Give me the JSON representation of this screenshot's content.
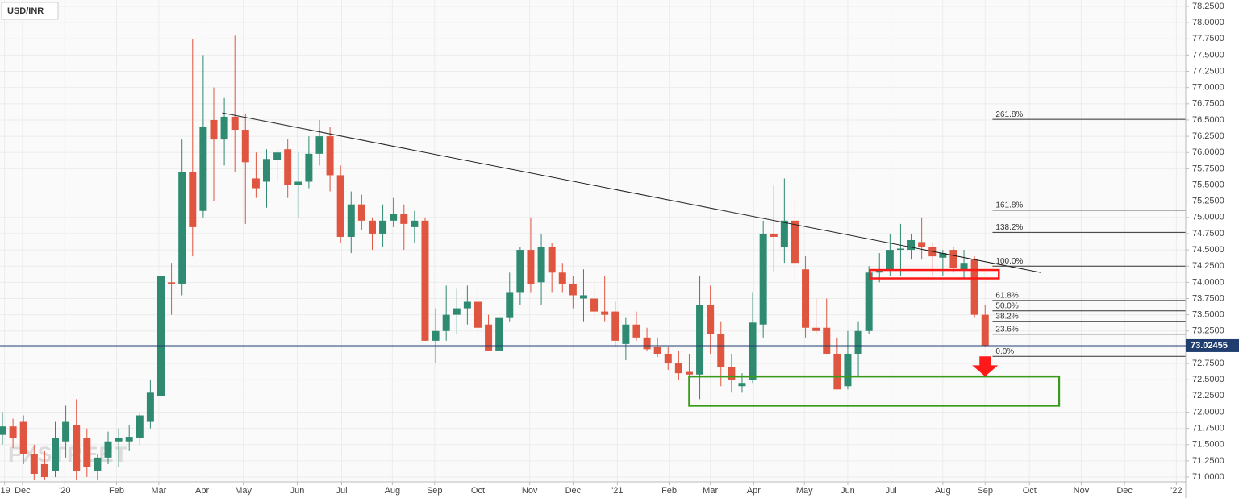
{
  "chart_data": {
    "type": "candlestick",
    "title": "USD/INR",
    "watermark": "FXSTREET",
    "up_color": "#2f8a72",
    "down_color": "#e0553f",
    "grid": true,
    "ylim": [
      70.926,
      78.349
    ],
    "yticks": [
      {
        "value": 71.0,
        "label": "71.0000"
      },
      {
        "value": 71.25,
        "label": "71.2500"
      },
      {
        "value": 71.5,
        "label": "71.5000"
      },
      {
        "value": 71.75,
        "label": "71.7500"
      },
      {
        "value": 72.0,
        "label": "72.0000"
      },
      {
        "value": 72.25,
        "label": "72.2500"
      },
      {
        "value": 72.5,
        "label": "72.5000"
      },
      {
        "value": 72.75,
        "label": "72.7500"
      },
      {
        "value": 73.0,
        "label": "73.0000"
      },
      {
        "value": 73.25,
        "label": "73.2500"
      },
      {
        "value": 73.5,
        "label": "73.5000"
      },
      {
        "value": 73.75,
        "label": "73.7500"
      },
      {
        "value": 74.0,
        "label": "74.0000"
      },
      {
        "value": 74.25,
        "label": "74.2500"
      },
      {
        "value": 74.5,
        "label": "74.5000"
      },
      {
        "value": 74.75,
        "label": "74.7500"
      },
      {
        "value": 75.0,
        "label": "75.0000"
      },
      {
        "value": 75.25,
        "label": "75.2500"
      },
      {
        "value": 75.5,
        "label": "75.5000"
      },
      {
        "value": 75.75,
        "label": "75.7500"
      },
      {
        "value": 76.0,
        "label": "76.0000"
      },
      {
        "value": 76.25,
        "label": "76.2500"
      },
      {
        "value": 76.5,
        "label": "76.5000"
      },
      {
        "value": 76.75,
        "label": "76.7500"
      },
      {
        "value": 77.0,
        "label": "77.0000"
      },
      {
        "value": 77.25,
        "label": "77.2500"
      },
      {
        "value": 77.5,
        "label": "77.5000"
      },
      {
        "value": 77.75,
        "label": "77.7500"
      },
      {
        "value": 78.0,
        "label": "78.0000"
      },
      {
        "value": 78.25,
        "label": "78.2500"
      }
    ],
    "xlim": [
      -0.229,
      111.99
    ],
    "xticks": [
      {
        "value": 0.2,
        "label": "'19"
      },
      {
        "value": 1.9,
        "label": "Dec"
      },
      {
        "value": 5.9,
        "label": "'20"
      },
      {
        "value": 10.8,
        "label": "Feb"
      },
      {
        "value": 14.8,
        "label": "Mar"
      },
      {
        "value": 18.9,
        "label": "Apr"
      },
      {
        "value": 22.8,
        "label": "May"
      },
      {
        "value": 27.9,
        "label": "Jun"
      },
      {
        "value": 32.1,
        "label": "Jul"
      },
      {
        "value": 36.9,
        "label": "Aug"
      },
      {
        "value": 40.9,
        "label": "Sep"
      },
      {
        "value": 45.0,
        "label": "Oct"
      },
      {
        "value": 49.9,
        "label": "Nov"
      },
      {
        "value": 54.0,
        "label": "Dec"
      },
      {
        "value": 58.2,
        "label": "'21"
      },
      {
        "value": 63.1,
        "label": "Feb"
      },
      {
        "value": 67.0,
        "label": "Mar"
      },
      {
        "value": 71.1,
        "label": "Apr"
      },
      {
        "value": 75.9,
        "label": "May"
      },
      {
        "value": 80.0,
        "label": "Jun"
      },
      {
        "value": 84.1,
        "label": "Jul"
      },
      {
        "value": 89.0,
        "label": "Aug"
      },
      {
        "value": 93.0,
        "label": "Sep"
      },
      {
        "value": 97.2,
        "label": "Oct"
      },
      {
        "value": 102.1,
        "label": "Nov"
      },
      {
        "value": 106.2,
        "label": "Dec"
      },
      {
        "value": 111.1,
        "label": "'22"
      }
    ],
    "series": {
      "open": [
        71.65,
        71.78,
        71.85,
        71.35,
        71.2,
        71.1,
        71.55,
        71.8,
        71.6,
        71.1,
        71.3,
        71.55,
        71.55,
        71.6,
        71.85,
        72.25,
        74.0,
        73.98,
        75.7,
        75.1,
        76.5,
        76.2,
        76.55,
        76.35,
        75.6,
        75.55,
        75.88,
        76.05,
        75.5,
        75.55,
        75.98,
        76.25,
        75.65,
        74.7,
        75.2,
        74.95,
        74.75,
        74.95,
        75.05,
        74.85,
        74.95,
        73.1,
        73.25,
        73.5,
        73.6,
        73.7,
        73.35,
        72.95,
        73.45,
        73.85,
        74.5,
        74.0,
        74.55,
        74.15,
        73.98,
        73.75,
        73.75,
        73.55,
        73.55,
        73.05,
        73.35,
        73.15,
        73.0,
        72.9,
        72.75,
        72.62,
        72.58,
        73.65,
        73.2,
        72.7,
        72.4,
        72.5,
        73.35,
        74.75,
        74.55,
        74.95,
        74.2,
        73.3,
        73.3,
        72.9,
        72.4,
        72.9,
        73.25,
        74.15,
        74.2,
        74.5,
        74.5,
        74.62,
        74.55,
        74.38,
        74.5,
        74.2,
        74.35,
        73.5
      ],
      "high": [
        72.0,
        71.9,
        71.95,
        71.5,
        71.4,
        71.85,
        72.1,
        72.2,
        71.75,
        71.35,
        71.7,
        71.75,
        71.8,
        72.0,
        72.5,
        74.25,
        74.3,
        76.2,
        77.75,
        77.5,
        77.0,
        76.85,
        77.8,
        76.6,
        76.0,
        76.05,
        76.05,
        76.2,
        76.0,
        76.25,
        76.5,
        76.4,
        75.8,
        75.4,
        75.35,
        75.0,
        75.2,
        75.3,
        75.2,
        75.1,
        75.0,
        73.6,
        73.95,
        73.9,
        73.95,
        73.95,
        73.5,
        73.45,
        74.15,
        74.55,
        75.0,
        74.75,
        74.6,
        74.3,
        74.1,
        74.2,
        74.0,
        74.1,
        73.7,
        73.45,
        73.55,
        73.3,
        73.15,
        73.0,
        72.95,
        72.9,
        74.1,
        73.95,
        73.4,
        72.9,
        72.6,
        73.85,
        74.95,
        75.5,
        75.6,
        75.3,
        74.4,
        73.75,
        73.75,
        73.15,
        73.25,
        73.4,
        74.25,
        74.45,
        74.75,
        74.9,
        74.75,
        75.0,
        74.6,
        74.5,
        74.55,
        74.5,
        74.4,
        73.65
      ],
      "low": [
        71.5,
        71.45,
        71.2,
        70.95,
        70.95,
        71.0,
        71.3,
        70.95,
        71.0,
        70.95,
        71.2,
        71.15,
        71.4,
        71.5,
        71.75,
        72.2,
        73.5,
        73.8,
        74.4,
        75.0,
        75.25,
        75.8,
        75.7,
        74.9,
        75.3,
        75.15,
        75.55,
        75.3,
        75.0,
        75.45,
        75.8,
        75.4,
        74.6,
        74.45,
        74.8,
        74.5,
        74.55,
        74.85,
        74.5,
        74.6,
        73.1,
        72.75,
        73.1,
        73.2,
        73.35,
        73.2,
        72.95,
        72.95,
        73.4,
        73.65,
        73.85,
        73.65,
        73.85,
        73.85,
        73.6,
        73.4,
        73.4,
        73.4,
        73.0,
        72.8,
        73.1,
        72.95,
        72.85,
        72.65,
        72.5,
        72.5,
        72.2,
        72.9,
        72.4,
        72.3,
        72.3,
        72.45,
        73.15,
        74.15,
        74.3,
        74.0,
        73.15,
        73.2,
        72.9,
        72.35,
        72.35,
        72.55,
        73.2,
        74.0,
        74.1,
        74.1,
        74.35,
        74.35,
        74.1,
        74.1,
        74.15,
        74.05,
        73.45,
        73.0
      ],
      "close": [
        71.78,
        71.6,
        71.35,
        71.05,
        71.0,
        71.6,
        71.85,
        71.1,
        71.15,
        71.3,
        71.55,
        71.6,
        71.62,
        71.95,
        72.3,
        74.1,
        73.98,
        75.7,
        74.85,
        76.4,
        76.2,
        76.55,
        76.35,
        75.85,
        75.45,
        75.9,
        76.0,
        75.5,
        75.55,
        75.98,
        76.25,
        75.65,
        74.7,
        75.2,
        74.95,
        74.75,
        74.95,
        75.05,
        74.9,
        74.95,
        73.1,
        73.25,
        73.5,
        73.6,
        73.7,
        73.3,
        72.95,
        73.45,
        73.85,
        74.5,
        73.98,
        74.55,
        74.15,
        73.98,
        73.8,
        73.8,
        73.55,
        73.5,
        73.1,
        73.35,
        73.15,
        72.97,
        72.9,
        72.75,
        72.6,
        72.58,
        73.65,
        73.2,
        72.7,
        72.5,
        72.45,
        73.38,
        74.75,
        74.7,
        74.95,
        74.3,
        73.3,
        73.25,
        72.9,
        72.35,
        72.9,
        73.25,
        74.15,
        74.2,
        74.5,
        74.52,
        74.65,
        74.55,
        74.4,
        74.45,
        74.22,
        74.3,
        73.5,
        73.02
      ]
    },
    "last_price": 73.02455,
    "trendline": {
      "x": [
        20.8,
        98.3
      ],
      "y": [
        76.61,
        74.15
      ]
    },
    "fib_levels": [
      {
        "value": 76.51,
        "label": "261.8%"
      },
      {
        "value": 75.11,
        "label": "161.8%"
      },
      {
        "value": 74.77,
        "label": "138.2%"
      },
      {
        "value": 74.25,
        "label": "100.0%"
      },
      {
        "value": 73.72,
        "label": "61.8%"
      },
      {
        "value": 73.56,
        "label": "50.0%"
      },
      {
        "value": 73.4,
        "label": "38.2%"
      },
      {
        "value": 73.2,
        "label": "23.6%"
      },
      {
        "value": 72.86,
        "label": "0.0%"
      }
    ],
    "resistance_zone": {
      "x": [
        82.1,
        94.3
      ],
      "y": [
        74.06,
        74.19
      ],
      "color": "#ff1a1a"
    },
    "support_zone": {
      "x": [
        65.0,
        100.0
      ],
      "y": [
        72.1,
        72.55
      ],
      "color": "#3a9a1a"
    },
    "arrow": {
      "x": 93.0,
      "y": [
        72.86,
        72.55
      ],
      "color": "#ff1a1a"
    }
  }
}
